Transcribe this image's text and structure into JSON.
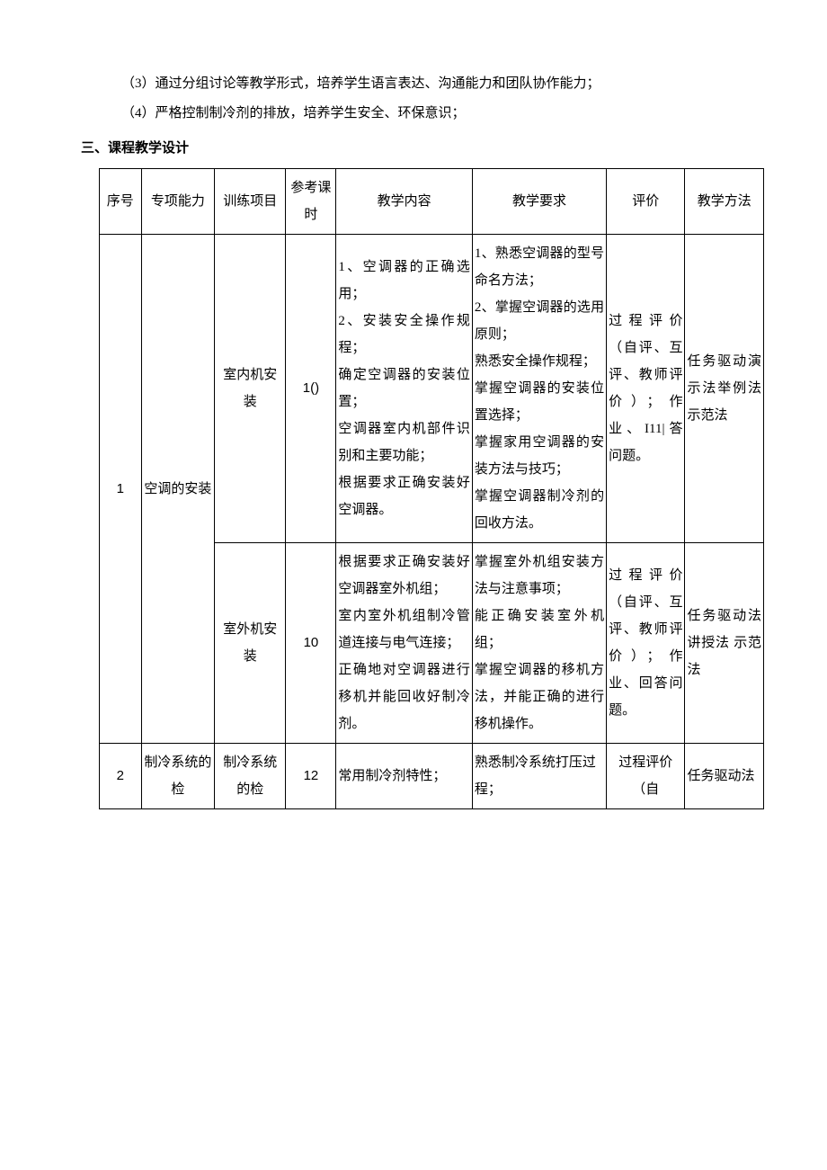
{
  "paragraphs": {
    "p1": "（3）通过分组讨论等教学形式，培养学生语言表达、沟通能力和团队协作能力；",
    "p2": "（4）严格控制制冷剂的排放，培养学生安全、环保意识；"
  },
  "section_title": "三、课程教学设计",
  "table": {
    "headers": {
      "seq": "序号",
      "ability": "专项能力",
      "project": "训练项目",
      "hours": "参考课时",
      "content": "教学内容",
      "require": "教学要求",
      "eval": "评价",
      "method": "教学方法"
    },
    "rows": [
      {
        "seq": "1",
        "ability": "空调的安装",
        "subrows": [
          {
            "project": "室内机安装",
            "hours": "1()",
            "content": "1、空调器的正确选用；\n2、安装安全操作规程；\n确定空调器的安装位置；\n空调器室内机部件识别和主要功能；\n根据要求正确安装好空调器。",
            "require": "1、熟悉空调器的型号命名方法；\n2、掌握空调器的选用原则；\n熟悉安全操作规程；\n掌握空调器的安装位置选择；\n掌握家用空调器的安装方法与技巧；\n掌握空调器制冷剂的回收方法。",
            "eval": "过程评价（自评、互评、教师评价）；作业、I11|答问题。",
            "method": "任务驱动演示法举例法示范法"
          },
          {
            "project": "室外机安装",
            "hours": "10",
            "content": "根据要求正确安装好空调器室外机组；\n室内室外机组制冷管道连接与电气连接；\n正确地对空调器进行移机并能回收好制冷剂。",
            "require": "掌握室外机组安装方法与注意事项；\n能正确安装室外机组；\n掌握空调器的移机方法，并能正确的进行移机操作。",
            "eval": "过程评价（自评、互评、教师评价）；作业、回答问题。",
            "method": "任务驱动法 讲授法 示范法"
          }
        ]
      },
      {
        "seq": "2",
        "ability": "制冷系统的检",
        "subrows": [
          {
            "project": "制冷系统的检",
            "hours": "12",
            "content": "常用制冷剂特性；",
            "require": "熟悉制冷系统打压过程；",
            "eval": "过程评价（自",
            "method": "任务驱动法"
          }
        ]
      }
    ]
  }
}
